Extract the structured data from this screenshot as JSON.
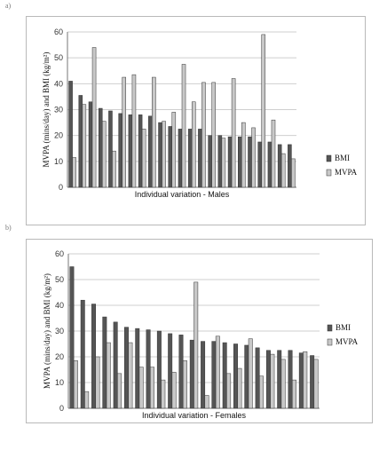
{
  "panels": [
    {
      "letter": "a)"
    },
    {
      "letter": "b)"
    }
  ],
  "chart_data": [
    {
      "type": "bar",
      "xlabel": "Individual variation - Males",
      "ylabel": "MVPA (mins/day) and BMI (kg/m²)",
      "ylim": [
        0,
        60
      ],
      "yticks": [
        0,
        10,
        20,
        30,
        40,
        50,
        60
      ],
      "grid": true,
      "legend_position": "right",
      "series": [
        {
          "name": "BMI",
          "color": "#555555",
          "values": [
            41,
            35.5,
            33,
            30.5,
            29.5,
            28.5,
            28,
            28,
            27.5,
            25,
            23.5,
            22.5,
            22.5,
            22.5,
            20,
            20,
            19.5,
            19.5,
            19.5,
            17.5,
            17.5,
            16.5,
            16.5
          ]
        },
        {
          "name": "MVPA",
          "color": "#c8c8c8",
          "values": [
            11.5,
            32,
            54,
            25.5,
            14,
            42.5,
            43.5,
            22.5,
            42.5,
            25.5,
            29,
            47.5,
            33,
            40.5,
            40.5,
            19,
            42,
            25,
            23,
            59,
            26,
            13,
            11
          ]
        }
      ]
    },
    {
      "type": "bar",
      "xlabel": "Individual variation - Females",
      "ylabel": "MVPA (mins/day) and BMI (kg/m²)",
      "ylim": [
        0,
        60
      ],
      "yticks": [
        0,
        10,
        20,
        30,
        40,
        50,
        60
      ],
      "grid": true,
      "legend_position": "right",
      "series": [
        {
          "name": "BMI",
          "color": "#555555",
          "values": [
            55,
            42,
            40.5,
            35.5,
            33.5,
            31.5,
            31,
            30.5,
            30,
            29,
            28.5,
            26.5,
            26,
            26,
            25.5,
            25,
            24.5,
            23.5,
            22.5,
            22.5,
            22.5,
            21.5,
            20.5
          ]
        },
        {
          "name": "MVPA",
          "color": "#c8c8c8",
          "values": [
            18.5,
            6.5,
            20,
            25.5,
            13.5,
            25.5,
            16,
            16,
            11,
            14,
            18.5,
            49,
            5,
            28,
            13.5,
            15.5,
            27,
            12.5,
            21,
            19,
            11,
            22,
            19
          ]
        }
      ]
    }
  ]
}
